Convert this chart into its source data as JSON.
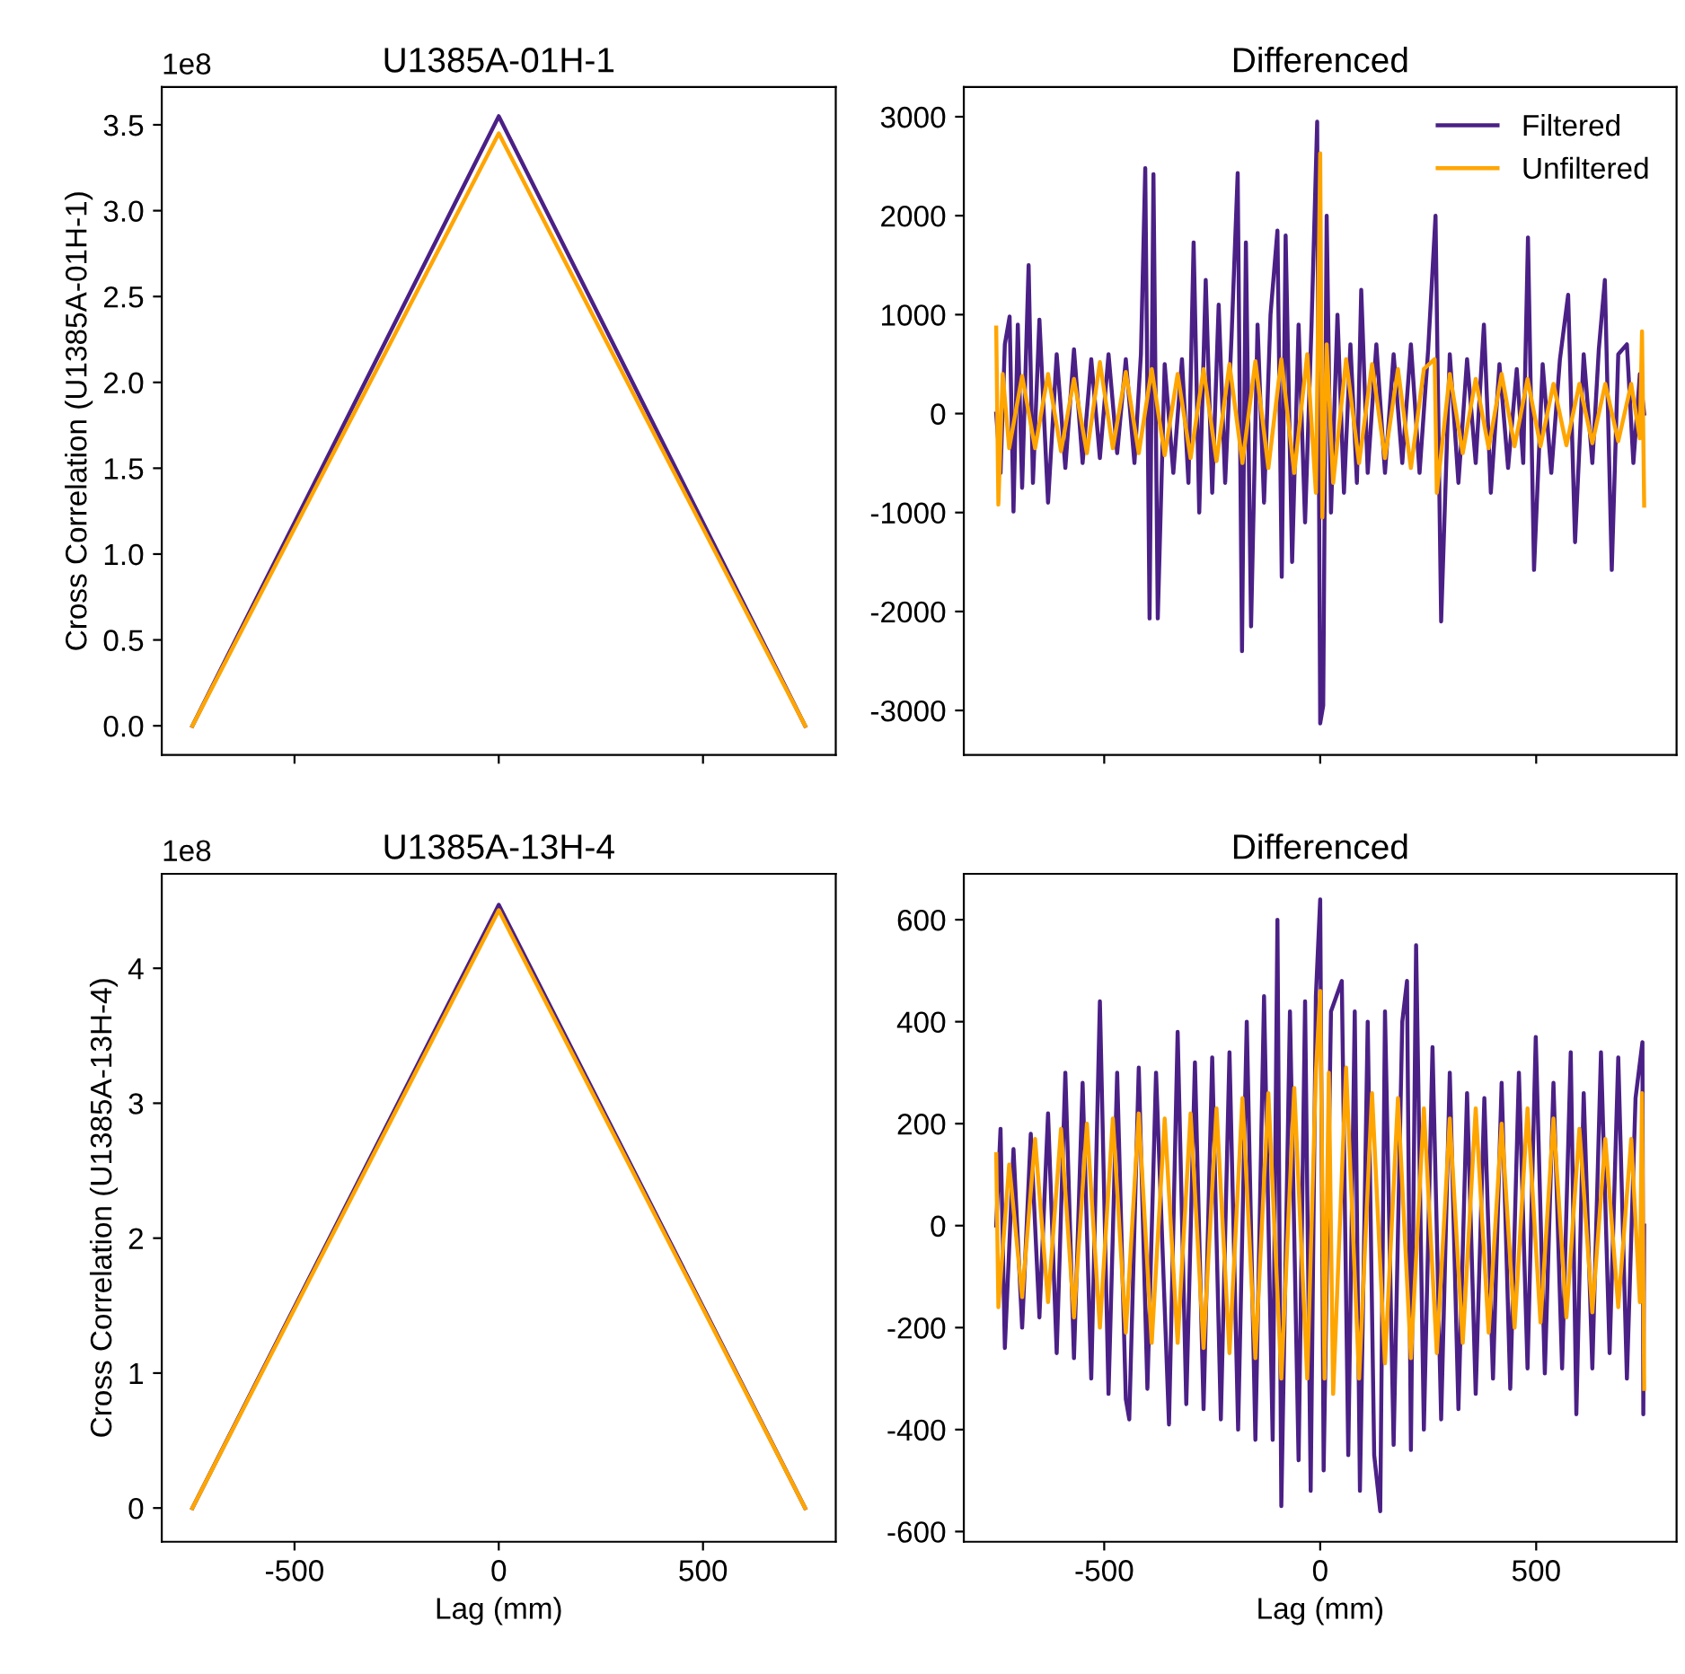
{
  "chart_data": [
    {
      "type": "line",
      "title": "U1385A-01H-1",
      "ylabel": "Cross Correlation (U1385A-01H-1)",
      "annotations": [
        "1e8"
      ],
      "xlim": [
        -825,
        825
      ],
      "xticks": [
        -500,
        0,
        500
      ],
      "ylim": [
        -0.17,
        3.72
      ],
      "yticks": [
        {
          "value": 0,
          "label": "0.0"
        },
        0.5,
        {
          "value": 1,
          "label": "1.0"
        },
        1.5,
        {
          "value": 2,
          "label": "2.0"
        },
        2.5,
        {
          "value": 3,
          "label": "3.0"
        },
        3.5
      ],
      "tick_labels": "y",
      "grid": false,
      "legend": false,
      "series": [
        {
          "color": "#4b2086",
          "x": [
            -750,
            0,
            750
          ],
          "values": [
            0,
            3.55,
            0
          ]
        },
        {
          "color": "#ffa500",
          "x": [
            -750,
            0,
            750
          ],
          "values": [
            0,
            3.45,
            0
          ]
        }
      ]
    },
    {
      "type": "line",
      "title": "Differenced",
      "xlim": [
        -825,
        825
      ],
      "xticks": [
        -500,
        0,
        500
      ],
      "ylim": [
        -3450,
        3300
      ],
      "yticks": [
        -3000,
        -2000,
        -1000,
        0,
        1000,
        2000,
        3000
      ],
      "tick_labels": "y",
      "grid": false,
      "legend": "top right",
      "series": [
        {
          "name": "Filtered",
          "color": "#4b2086",
          "x": [
            -750,
            -740,
            -730,
            -719,
            -710,
            -700,
            -690,
            -675,
            -665,
            -650,
            -630,
            -610,
            -590,
            -570,
            -550,
            -530,
            -510,
            -490,
            -470,
            -450,
            -430,
            -415,
            -405,
            -395,
            -386,
            -376,
            -360,
            -340,
            -320,
            -305,
            -293,
            -280,
            -265,
            -250,
            -235,
            -220,
            -205,
            -191,
            -181,
            -172,
            -160,
            -145,
            -130,
            -115,
            -99,
            -89,
            -80,
            -65,
            -50,
            -35,
            -20,
            -7,
            0,
            7,
            15,
            25,
            40,
            55,
            70,
            85,
            95,
            110,
            130,
            150,
            170,
            190,
            210,
            230,
            250,
            267,
            280,
            300,
            320,
            340,
            360,
            379,
            395,
            415,
            435,
            455,
            470,
            481,
            495,
            515,
            535,
            555,
            574,
            590,
            610,
            630,
            645,
            659,
            675,
            690,
            710,
            725,
            740,
            750
          ],
          "values": [
            0,
            -600,
            700,
            980,
            -990,
            900,
            -750,
            1500,
            -700,
            950,
            -900,
            600,
            -550,
            650,
            -500,
            550,
            -450,
            600,
            -400,
            550,
            -500,
            600,
            2480,
            -2070,
            2420,
            -2070,
            500,
            -600,
            550,
            -700,
            1730,
            -1000,
            1350,
            -800,
            1100,
            -700,
            800,
            2430,
            -2400,
            1730,
            -2150,
            900,
            -900,
            1000,
            1850,
            -1650,
            1800,
            -1500,
            900,
            -1100,
            900,
            2950,
            -3130,
            -2950,
            2000,
            -1000,
            1000,
            -800,
            700,
            -700,
            1250,
            -600,
            700,
            -600,
            600,
            -500,
            700,
            -600,
            650,
            2000,
            -2100,
            600,
            -700,
            550,
            -500,
            900,
            -800,
            500,
            -550,
            450,
            -500,
            1780,
            -1580,
            500,
            -600,
            550,
            1200,
            -1300,
            600,
            -500,
            650,
            1350,
            -1580,
            600,
            700,
            -500,
            400,
            0
          ]
        },
        {
          "name": "Unfiltered",
          "color": "#ffa500",
          "x": [
            -750,
            -745,
            -735,
            -720,
            -690,
            -660,
            -630,
            -600,
            -570,
            -540,
            -510,
            -480,
            -450,
            -420,
            -390,
            -360,
            -330,
            -300,
            -270,
            -240,
            -210,
            -180,
            -150,
            -120,
            -90,
            -60,
            -30,
            -10,
            0,
            5,
            15,
            30,
            60,
            90,
            120,
            150,
            180,
            210,
            240,
            265,
            270,
            300,
            330,
            360,
            390,
            420,
            450,
            480,
            510,
            540,
            570,
            600,
            630,
            660,
            690,
            720,
            740,
            745,
            750
          ],
          "values": [
            870,
            -920,
            400,
            -350,
            380,
            -350,
            400,
            -380,
            350,
            -400,
            520,
            -350,
            420,
            -400,
            450,
            -420,
            400,
            -450,
            450,
            -480,
            500,
            -500,
            530,
            -550,
            550,
            -600,
            600,
            -800,
            2630,
            -1050,
            700,
            -700,
            550,
            -500,
            500,
            -450,
            450,
            -550,
            450,
            550,
            -800,
            400,
            -400,
            350,
            -350,
            400,
            -330,
            350,
            -330,
            300,
            -320,
            300,
            -300,
            300,
            -280,
            300,
            -250,
            830,
            -930
          ]
        }
      ]
    },
    {
      "type": "line",
      "title": "U1385A-13H-4",
      "ylabel": "Cross Correlation (U1385A-13H-4)",
      "xlabel": "Lag (mm)",
      "annotations": [
        "1e8"
      ],
      "xlim": [
        -825,
        825
      ],
      "xticks": [
        -500,
        0,
        500
      ],
      "ylim": [
        -0.25,
        4.7
      ],
      "yticks": [
        0,
        1,
        2,
        3,
        4
      ],
      "grid": false,
      "legend": false,
      "series": [
        {
          "color": "#4b2086",
          "x": [
            -750,
            0,
            750
          ],
          "values": [
            0,
            4.47,
            0
          ]
        },
        {
          "color": "#ffa500",
          "x": [
            -750,
            0,
            750
          ],
          "values": [
            0,
            4.43,
            0
          ]
        }
      ]
    },
    {
      "type": "line",
      "title": "Differenced",
      "xlabel": "Lag (mm)",
      "xlim": [
        -825,
        825
      ],
      "xticks": [
        -500,
        0,
        500
      ],
      "ylim": [
        -620,
        690
      ],
      "yticks": [
        -600,
        -400,
        -200,
        0,
        200,
        400,
        600
      ],
      "grid": false,
      "legend": false,
      "series": [
        {
          "color": "#4b2086",
          "x": [
            -750,
            -740,
            -730,
            -710,
            -690,
            -670,
            -650,
            -630,
            -610,
            -590,
            -570,
            -550,
            -530,
            -510,
            -490,
            -470,
            -450,
            -442,
            -420,
            -400,
            -380,
            -350,
            -330,
            -310,
            -290,
            -270,
            -250,
            -230,
            -210,
            -190,
            -170,
            -150,
            -130,
            -110,
            -99,
            -90,
            -70,
            -50,
            -35,
            -22,
            -10,
            0,
            8,
            25,
            50,
            65,
            80,
            92,
            110,
            125,
            139,
            150,
            170,
            190,
            201,
            210,
            222,
            240,
            260,
            280,
            300,
            320,
            340,
            360,
            380,
            400,
            420,
            440,
            460,
            480,
            499,
            520,
            540,
            560,
            580,
            593,
            610,
            630,
            650,
            670,
            690,
            710,
            730,
            746,
            748,
            750
          ],
          "values": [
            0,
            190,
            -240,
            150,
            -200,
            180,
            -180,
            220,
            -250,
            300,
            -260,
            280,
            -300,
            440,
            -330,
            300,
            -340,
            -380,
            310,
            -320,
            300,
            -390,
            380,
            -350,
            320,
            -360,
            330,
            -380,
            340,
            -400,
            400,
            -420,
            450,
            -420,
            600,
            -550,
            420,
            -460,
            440,
            -520,
            450,
            640,
            -480,
            420,
            480,
            -450,
            420,
            -520,
            400,
            -450,
            -560,
            420,
            -430,
            400,
            480,
            -440,
            550,
            -400,
            350,
            -380,
            300,
            -360,
            260,
            -330,
            250,
            -300,
            280,
            -320,
            300,
            -280,
            370,
            -290,
            280,
            -280,
            340,
            -370,
            260,
            -280,
            340,
            -250,
            330,
            -300,
            250,
            360,
            -370,
            0
          ]
        },
        {
          "color": "#ffa500",
          "x": [
            -750,
            -745,
            -720,
            -690,
            -660,
            -630,
            -600,
            -570,
            -540,
            -510,
            -480,
            -450,
            -420,
            -390,
            -360,
            -330,
            -300,
            -270,
            -240,
            -210,
            -180,
            -150,
            -120,
            -90,
            -60,
            -30,
            -10,
            0,
            10,
            20,
            30,
            60,
            90,
            120,
            150,
            180,
            210,
            240,
            270,
            300,
            330,
            360,
            390,
            420,
            450,
            480,
            510,
            540,
            570,
            600,
            630,
            660,
            690,
            720,
            740,
            745,
            750
          ],
          "values": [
            140,
            -160,
            120,
            -140,
            170,
            -150,
            190,
            -180,
            200,
            -200,
            210,
            -210,
            220,
            -230,
            210,
            -230,
            220,
            -240,
            230,
            -250,
            250,
            -260,
            260,
            -300,
            270,
            -300,
            300,
            460,
            -300,
            300,
            -330,
            310,
            -300,
            260,
            -270,
            250,
            -260,
            230,
            -250,
            210,
            -230,
            230,
            -210,
            200,
            -200,
            230,
            -190,
            210,
            -180,
            190,
            -170,
            170,
            -160,
            170,
            -150,
            260,
            -320
          ]
        }
      ]
    }
  ]
}
